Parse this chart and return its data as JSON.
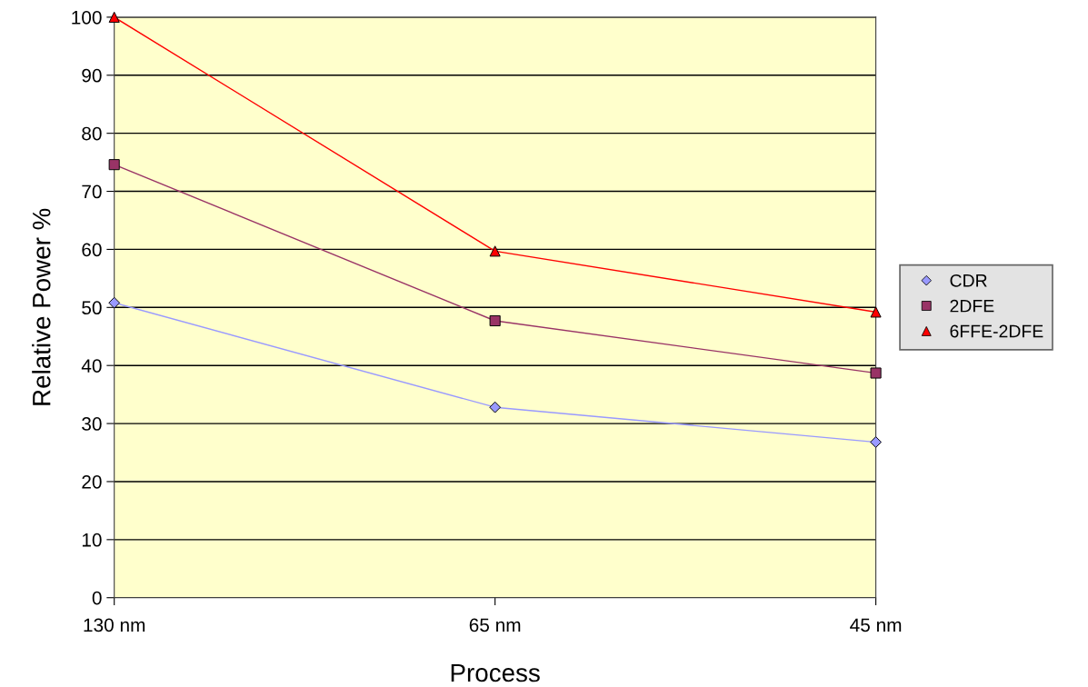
{
  "chart_data": {
    "type": "line",
    "xlabel": "Process",
    "ylabel": "Relative Power %",
    "categories": [
      "130 nm",
      "65 nm",
      "45 nm"
    ],
    "series": [
      {
        "name": "CDR",
        "color": "#9999ff",
        "marker": "diamond",
        "values": [
          50.8,
          32.8,
          26.8
        ]
      },
      {
        "name": "2DFE",
        "color": "#993366",
        "marker": "square",
        "values": [
          74.6,
          47.7,
          38.7
        ]
      },
      {
        "name": "6FFE-2DFE",
        "color": "#ff0000",
        "marker": "triangle",
        "values": [
          100,
          59.7,
          49.2
        ]
      }
    ],
    "ylim": [
      0,
      100
    ],
    "yticks": [
      0,
      10,
      20,
      30,
      40,
      50,
      60,
      70,
      80,
      90,
      100
    ],
    "grid": "y",
    "legend": "right"
  }
}
